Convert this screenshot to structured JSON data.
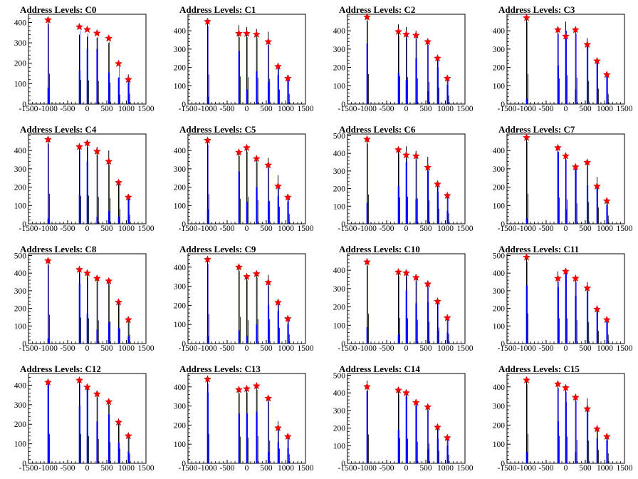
{
  "colors": {
    "black_hist": "#000000",
    "blue_hist": "#0000ff",
    "marker": "#ff0000",
    "axis": "#000000"
  },
  "chart_data": [
    {
      "type": "bar",
      "title": "Address Levels: C0",
      "xlim": [
        -1500,
        1500
      ],
      "ylim": [
        0,
        440
      ],
      "yticks": [
        0,
        100,
        200,
        300,
        400
      ],
      "xticks": [
        "-1500",
        "-1000",
        "-500",
        "0",
        "500",
        "1000",
        "1500"
      ],
      "x": [
        -1000,
        -200,
        0,
        250,
        550,
        800,
        1050
      ],
      "series": [
        {
          "values": [
            425,
            340,
            330,
            325,
            300,
            130,
            145
          ]
        },
        {
          "values": [
            80,
            165,
            270,
            270,
            155,
            130,
            105
          ]
        },
        {
          "values": [
            412,
            378,
            365,
            347,
            322,
            198,
            120
          ]
        }
      ]
    },
    {
      "type": "bar",
      "title": "Address Levels: C1",
      "xlim": [
        -1500,
        1500
      ],
      "ylim": [
        0,
        490
      ],
      "yticks": [
        0,
        100,
        200,
        300,
        400
      ],
      "xticks": [
        "-1500",
        "-1000",
        "-500",
        "0",
        "500",
        "1000",
        "1500"
      ],
      "x": [
        -1000,
        -200,
        0,
        250,
        550,
        800,
        1050
      ],
      "series": [
        {
          "values": [
            460,
            430,
            420,
            410,
            395,
            225,
            160
          ]
        },
        {
          "values": [
            40,
            290,
            80,
            180,
            120,
            160,
            155
          ]
        },
        {
          "values": [
            450,
            385,
            385,
            380,
            340,
            205,
            140
          ]
        }
      ]
    },
    {
      "type": "bar",
      "title": "Address Levels: C2",
      "xlim": [
        -1500,
        1500
      ],
      "ylim": [
        0,
        490
      ],
      "yticks": [
        0,
        100,
        200,
        300,
        400
      ],
      "xticks": [
        "-1500",
        "-1000",
        "-500",
        "0",
        "500",
        "1000",
        "1500"
      ],
      "x": [
        -1000,
        -200,
        0,
        250,
        550,
        800,
        1050
      ],
      "series": [
        {
          "values": [
            470,
            435,
            420,
            400,
            345,
            255,
            135
          ]
        },
        {
          "values": [
            330,
            170,
            130,
            250,
            70,
            200,
            105
          ]
        },
        {
          "values": [
            475,
            395,
            380,
            375,
            340,
            250,
            140
          ]
        }
      ]
    },
    {
      "type": "bar",
      "title": "Address Levels: C3",
      "xlim": [
        -1500,
        1500
      ],
      "ylim": [
        0,
        490
      ],
      "yticks": [
        0,
        100,
        200,
        300,
        400
      ],
      "xticks": [
        "-1500",
        "-1000",
        "-500",
        "0",
        "500",
        "1000",
        "1500"
      ],
      "x": [
        -1000,
        -200,
        0,
        250,
        550,
        800,
        1050
      ],
      "series": [
        {
          "values": [
            470,
            400,
            450,
            410,
            360,
            240,
            160
          ]
        },
        {
          "values": [
            30,
            210,
            400,
            80,
            330,
            230,
            155
          ]
        },
        {
          "values": [
            470,
            405,
            370,
            405,
            325,
            235,
            160
          ]
        }
      ]
    },
    {
      "type": "bar",
      "title": "Address Levels: C4",
      "xlim": [
        -1500,
        1500
      ],
      "ylim": [
        0,
        490
      ],
      "yticks": [
        0,
        100,
        200,
        300,
        400
      ],
      "xticks": [
        "-1500",
        "-1000",
        "-500",
        "0",
        "500",
        "1000",
        "1500"
      ],
      "x": [
        -1000,
        -200,
        0,
        250,
        550,
        800,
        1050
      ],
      "series": [
        {
          "values": [
            470,
            430,
            440,
            420,
            400,
            230,
            140
          ]
        },
        {
          "values": [
            30,
            160,
            340,
            40,
            70,
            40,
            135
          ]
        },
        {
          "values": [
            460,
            420,
            440,
            395,
            340,
            225,
            145
          ]
        }
      ]
    },
    {
      "type": "bar",
      "title": "Address Levels: C5",
      "xlim": [
        -1500,
        1500
      ],
      "ylim": [
        0,
        490
      ],
      "yticks": [
        0,
        100,
        200,
        300,
        400
      ],
      "xticks": [
        "-1500",
        "-1000",
        "-500",
        "0",
        "500",
        "1000",
        "1500"
      ],
      "x": [
        -1000,
        -200,
        0,
        250,
        550,
        800,
        1050
      ],
      "series": [
        {
          "values": [
            460,
            390,
            420,
            370,
            360,
            265,
            155
          ]
        },
        {
          "values": [
            80,
            285,
            120,
            200,
            120,
            150,
            120
          ]
        },
        {
          "values": [
            455,
            390,
            415,
            355,
            320,
            205,
            145
          ]
        }
      ]
    },
    {
      "type": "bar",
      "title": "Address Levels: C6",
      "xlim": [
        -1500,
        1500
      ],
      "ylim": [
        0,
        510
      ],
      "yticks": [
        0,
        100,
        200,
        300,
        400,
        500
      ],
      "xticks": [
        "-1500",
        "-1000",
        "-500",
        "0",
        "500",
        "1000",
        "1500"
      ],
      "x": [
        -1000,
        -200,
        0,
        250,
        550,
        800,
        1050
      ],
      "series": [
        {
          "values": [
            475,
            430,
            440,
            415,
            380,
            245,
            170
          ]
        },
        {
          "values": [
            120,
            215,
            350,
            140,
            300,
            180,
            75
          ]
        },
        {
          "values": [
            480,
            420,
            390,
            385,
            320,
            225,
            160
          ]
        }
      ]
    },
    {
      "type": "bar",
      "title": "Address Levels: C7",
      "xlim": [
        -1500,
        1500
      ],
      "ylim": [
        0,
        490
      ],
      "yticks": [
        0,
        100,
        200,
        300,
        400
      ],
      "xticks": [
        "-1500",
        "-1000",
        "-500",
        "0",
        "500",
        "1000",
        "1500"
      ],
      "x": [
        -1000,
        -200,
        0,
        250,
        550,
        800,
        1050
      ],
      "series": [
        {
          "values": [
            470,
            410,
            380,
            320,
            340,
            255,
            130
          ]
        },
        {
          "values": [
            30,
            390,
            80,
            310,
            210,
            200,
            100
          ]
        },
        {
          "values": [
            470,
            415,
            370,
            310,
            335,
            205,
            125
          ]
        }
      ]
    },
    {
      "type": "bar",
      "title": "Address Levels: C8",
      "xlim": [
        -1500,
        1500
      ],
      "ylim": [
        0,
        510
      ],
      "yticks": [
        0,
        100,
        200,
        300,
        400,
        500
      ],
      "xticks": [
        "-1500",
        "-1000",
        "-500",
        "0",
        "500",
        "1000",
        "1500"
      ],
      "x": [
        -1000,
        -200,
        0,
        250,
        550,
        800,
        1050
      ],
      "series": [
        {
          "values": [
            470,
            420,
            410,
            375,
            360,
            240,
            145
          ]
        },
        {
          "values": [
            30,
            340,
            170,
            80,
            120,
            90,
            40
          ]
        },
        {
          "values": [
            470,
            420,
            400,
            370,
            355,
            235,
            135
          ]
        }
      ]
    },
    {
      "type": "bar",
      "title": "Address Levels: C9",
      "xlim": [
        -1500,
        1500
      ],
      "ylim": [
        0,
        470
      ],
      "yticks": [
        0,
        100,
        200,
        300,
        400
      ],
      "xticks": [
        "-1500",
        "-1000",
        "-500",
        "0",
        "500",
        "1000",
        "1500"
      ],
      "x": [
        -1000,
        -200,
        0,
        250,
        550,
        800,
        1050
      ],
      "series": [
        {
          "values": [
            440,
            400,
            350,
            365,
            360,
            235,
            140
          ]
        },
        {
          "values": [
            40,
            70,
            40,
            100,
            200,
            170,
            100
          ]
        },
        {
          "values": [
            440,
            400,
            350,
            365,
            320,
            215,
            130
          ]
        }
      ]
    },
    {
      "type": "bar",
      "title": "Address Levels: C10",
      "xlim": [
        -1500,
        1500
      ],
      "ylim": [
        0,
        490
      ],
      "yticks": [
        0,
        100,
        200,
        300,
        400
      ],
      "xticks": [
        "-1500",
        "-1000",
        "-500",
        "0",
        "500",
        "1000",
        "1500"
      ],
      "x": [
        -1000,
        -200,
        0,
        250,
        550,
        800,
        1050
      ],
      "series": [
        {
          "values": [
            465,
            400,
            395,
            370,
            340,
            250,
            150
          ]
        },
        {
          "values": [
            90,
            50,
            290,
            220,
            225,
            70,
            60
          ]
        },
        {
          "values": [
            445,
            390,
            385,
            360,
            325,
            230,
            140
          ]
        }
      ]
    },
    {
      "type": "bar",
      "title": "Address Levels: C11",
      "xlim": [
        -1500,
        1500
      ],
      "ylim": [
        0,
        510
      ],
      "yticks": [
        0,
        100,
        200,
        300,
        400,
        500
      ],
      "xticks": [
        "-1500",
        "-1000",
        "-500",
        "0",
        "500",
        "1000",
        "1500"
      ],
      "x": [
        -1000,
        -200,
        0,
        250,
        550,
        800,
        1050
      ],
      "series": [
        {
          "values": [
            490,
            410,
            410,
            380,
            350,
            205,
            145
          ]
        },
        {
          "values": [
            330,
            320,
            400,
            270,
            300,
            180,
            130
          ]
        },
        {
          "values": [
            490,
            370,
            410,
            370,
            315,
            195,
            135
          ]
        }
      ]
    },
    {
      "type": "bar",
      "title": "Address Levels: C12",
      "xlim": [
        -1500,
        1500
      ],
      "ylim": [
        0,
        460
      ],
      "yticks": [
        0,
        100,
        200,
        300,
        400
      ],
      "xticks": [
        "-1500",
        "-1000",
        "-500",
        "0",
        "500",
        "1000",
        "1500"
      ],
      "x": [
        -1000,
        -200,
        0,
        250,
        550,
        800,
        1050
      ],
      "series": [
        {
          "values": [
            430,
            430,
            400,
            355,
            310,
            215,
            140
          ]
        },
        {
          "values": [
            410,
            295,
            380,
            215,
            250,
            105,
            60
          ]
        },
        {
          "values": [
            415,
            425,
            390,
            355,
            315,
            210,
            140
          ]
        }
      ]
    },
    {
      "type": "bar",
      "title": "Address Levels: C13",
      "xlim": [
        -1500,
        1500
      ],
      "ylim": [
        0,
        470
      ],
      "yticks": [
        0,
        100,
        200,
        300,
        400
      ],
      "xticks": [
        "-1500",
        "-1000",
        "-500",
        "0",
        "500",
        "1000",
        "1500"
      ],
      "x": [
        -1000,
        -200,
        0,
        250,
        550,
        800,
        1050
      ],
      "series": [
        {
          "values": [
            440,
            400,
            385,
            410,
            340,
            220,
            140
          ]
        },
        {
          "values": [
            370,
            260,
            260,
            270,
            60,
            110,
            80
          ]
        },
        {
          "values": [
            440,
            385,
            390,
            405,
            340,
            185,
            140
          ]
        }
      ]
    },
    {
      "type": "bar",
      "title": "Address Levels: C14",
      "xlim": [
        -1500,
        1500
      ],
      "ylim": [
        0,
        510
      ],
      "yticks": [
        0,
        100,
        200,
        300,
        400,
        500
      ],
      "xticks": [
        "-1500",
        "-1000",
        "-500",
        "0",
        "500",
        "1000",
        "1500"
      ],
      "x": [
        -1000,
        -200,
        0,
        250,
        550,
        800,
        1050
      ],
      "series": [
        {
          "values": [
            470,
            410,
            400,
            350,
            320,
            205,
            140
          ]
        },
        {
          "values": [
            410,
            190,
            380,
            330,
            80,
            140,
            100
          ]
        },
        {
          "values": [
            435,
            415,
            400,
            345,
            320,
            205,
            145
          ]
        }
      ]
    },
    {
      "type": "bar",
      "title": "Address Levels: C15",
      "xlim": [
        -1500,
        1500
      ],
      "ylim": [
        0,
        470
      ],
      "yticks": [
        0,
        100,
        200,
        300,
        400
      ],
      "xticks": [
        "-1500",
        "-1000",
        "-500",
        "0",
        "500",
        "1000",
        "1500"
      ],
      "x": [
        -1000,
        -200,
        0,
        250,
        550,
        800,
        1050
      ],
      "series": [
        {
          "values": [
            440,
            410,
            400,
            350,
            340,
            200,
            150
          ]
        },
        {
          "values": [
            60,
            220,
            320,
            60,
            300,
            130,
            120
          ]
        },
        {
          "values": [
            435,
            415,
            395,
            345,
            285,
            180,
            140
          ]
        }
      ]
    }
  ]
}
